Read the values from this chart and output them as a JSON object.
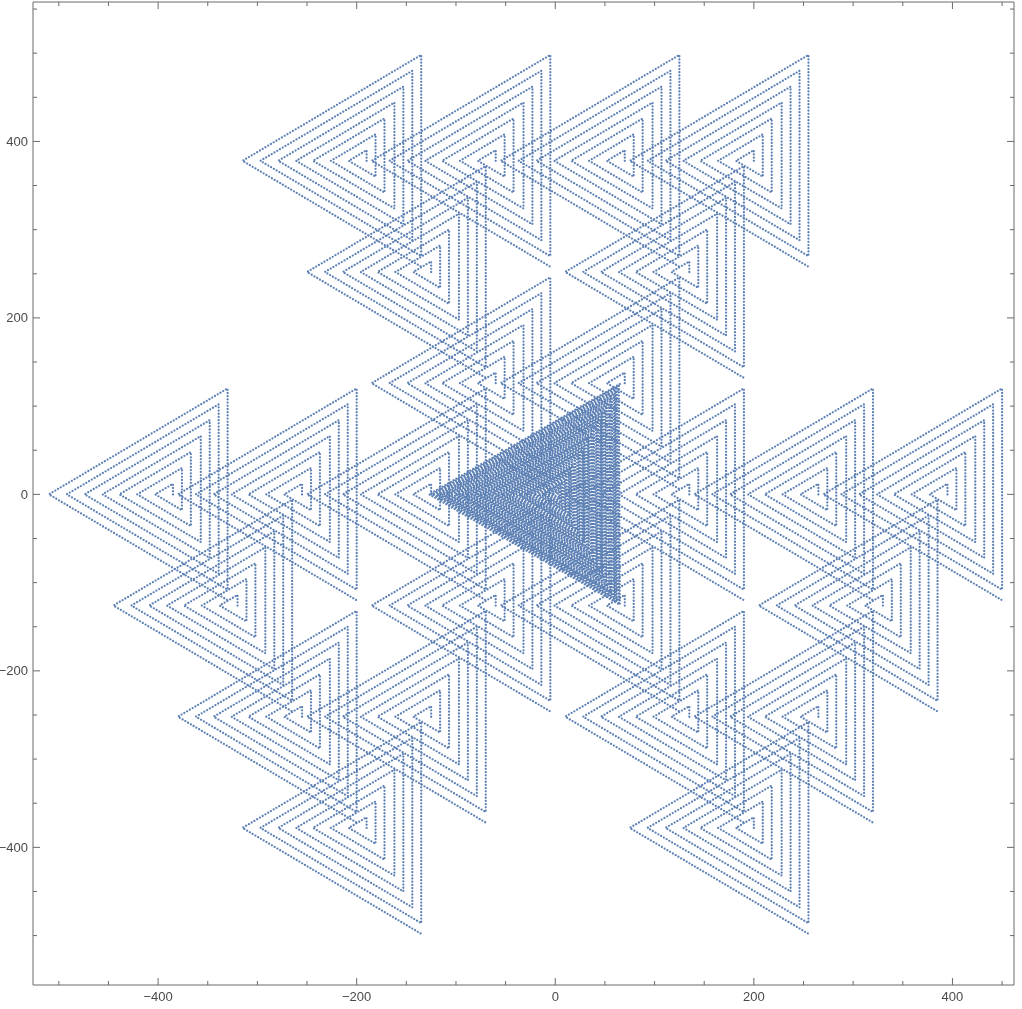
{
  "chart_data": {
    "type": "line",
    "line_style": "dotted",
    "xlim": [
      -526,
      462
    ],
    "ylim": [
      -556,
      558
    ],
    "xticks": [
      {
        "value": -500,
        "label": null
      },
      {
        "value": -450,
        "label": null
      },
      -400,
      {
        "value": -350,
        "label": null
      },
      {
        "value": -300,
        "label": null
      },
      {
        "value": -250,
        "label": null
      },
      -200,
      {
        "value": -150,
        "label": null
      },
      {
        "value": -100,
        "label": null
      },
      {
        "value": -50,
        "label": null
      },
      0,
      {
        "value": 50,
        "label": null
      },
      {
        "value": 100,
        "label": null
      },
      {
        "value": 150,
        "label": null
      },
      200,
      {
        "value": 250,
        "label": null
      },
      {
        "value": 300,
        "label": null
      },
      {
        "value": 350,
        "label": null
      },
      400,
      {
        "value": 450,
        "label": null
      }
    ],
    "yticks": [
      {
        "value": -500,
        "label": null
      },
      {
        "value": -450,
        "label": null
      },
      -400,
      {
        "value": -350,
        "label": null
      },
      {
        "value": -300,
        "label": null
      },
      {
        "value": -250,
        "label": null
      },
      -200,
      {
        "value": -150,
        "label": null
      },
      {
        "value": -100,
        "label": null
      },
      {
        "value": -50,
        "label": null
      },
      0,
      {
        "value": 50,
        "label": null
      },
      {
        "value": 100,
        "label": null
      },
      {
        "value": 150,
        "label": null
      },
      200,
      {
        "value": 250,
        "label": null
      },
      {
        "value": 300,
        "label": null
      },
      {
        "value": 350,
        "label": null
      },
      400,
      {
        "value": 450,
        "label": null
      },
      {
        "value": 500,
        "label": null
      },
      {
        "value": 550,
        "label": null
      }
    ],
    "series": [
      {
        "color": "#5e81b5",
        "x": [
          -190,
          -190,
          -208,
          -181,
          -181,
          -226,
          -172,
          -172,
          -244,
          -162,
          -162,
          -261,
          -153,
          -153,
          -279,
          -144,
          -144,
          -297,
          -135,
          -135,
          -315,
          -135
        ],
        "values": [
          378,
          390,
          378,
          360,
          408,
          378,
          342,
          426,
          378,
          324,
          444,
          378,
          306,
          462,
          378,
          288,
          480,
          378,
          270,
          498,
          378,
          258
        ]
      },
      {
        "color": "#5e81b5",
        "x": [
          -60,
          -60,
          -78,
          -51,
          -51,
          -96,
          -42,
          -42,
          -114,
          -32,
          -32,
          -131,
          -23,
          -23,
          -149,
          -14,
          -14,
          -167,
          -5,
          -5,
          -185,
          -5
        ],
        "values": [
          378,
          390,
          378,
          360,
          408,
          378,
          342,
          426,
          378,
          324,
          444,
          378,
          306,
          462,
          378,
          288,
          480,
          378,
          270,
          498,
          378,
          258
        ]
      },
      {
        "color": "#5e81b5",
        "x": [
          70,
          70,
          52,
          79,
          79,
          34,
          88,
          88,
          16,
          98,
          98,
          -1,
          107,
          107,
          -19,
          116,
          116,
          -37,
          125,
          125,
          -55,
          125
        ],
        "values": [
          378,
          390,
          378,
          360,
          408,
          378,
          342,
          426,
          378,
          324,
          444,
          378,
          306,
          462,
          378,
          288,
          480,
          378,
          270,
          498,
          378,
          258
        ]
      },
      {
        "color": "#5e81b5",
        "x": [
          200,
          200,
          182,
          209,
          209,
          164,
          218,
          218,
          146,
          228,
          228,
          129,
          237,
          237,
          111,
          246,
          246,
          93,
          255,
          255,
          75,
          255
        ],
        "values": [
          378,
          390,
          378,
          360,
          408,
          378,
          342,
          426,
          378,
          324,
          444,
          378,
          306,
          462,
          378,
          288,
          480,
          378,
          270,
          498,
          378,
          258
        ]
      },
      {
        "color": "#5e81b5",
        "x": [
          -125,
          -125,
          -143,
          -116,
          -116,
          -161,
          -107,
          -107,
          -179,
          -97,
          -97,
          -196,
          -88,
          -88,
          -214,
          -79,
          -79,
          -232,
          -70,
          -70,
          -250,
          -70
        ],
        "values": [
          252,
          264,
          252,
          234,
          282,
          252,
          216,
          300,
          252,
          198,
          318,
          252,
          180,
          336,
          252,
          162,
          354,
          252,
          144,
          372,
          252,
          132
        ]
      },
      {
        "color": "#5e81b5",
        "x": [
          135,
          135,
          117,
          144,
          144,
          99,
          153,
          153,
          81,
          163,
          163,
          64,
          172,
          172,
          46,
          181,
          181,
          28,
          190,
          190,
          10,
          190
        ],
        "values": [
          252,
          264,
          252,
          234,
          282,
          252,
          216,
          300,
          252,
          198,
          318,
          252,
          180,
          336,
          252,
          162,
          354,
          252,
          144,
          372,
          252,
          132
        ]
      },
      {
        "color": "#5e81b5",
        "x": [
          -60,
          -60,
          -78,
          -51,
          -51,
          -96,
          -42,
          -42,
          -114,
          -32,
          -32,
          -131,
          -23,
          -23,
          -149,
          -14,
          -14,
          -167,
          -5,
          -5,
          -185,
          -5
        ],
        "values": [
          126,
          138,
          126,
          108,
          156,
          126,
          90,
          174,
          126,
          72,
          192,
          126,
          54,
          210,
          126,
          36,
          228,
          126,
          18,
          246,
          126,
          6
        ]
      },
      {
        "color": "#5e81b5",
        "x": [
          70,
          70,
          52,
          79,
          79,
          34,
          88,
          88,
          16,
          98,
          98,
          -1,
          107,
          107,
          -19,
          116,
          116,
          -37,
          125,
          125,
          -55,
          125
        ],
        "values": [
          126,
          138,
          126,
          108,
          156,
          126,
          90,
          174,
          126,
          72,
          192,
          126,
          54,
          210,
          126,
          36,
          228,
          126,
          18,
          246,
          126,
          6
        ]
      },
      {
        "color": "#5e81b5",
        "x": [
          -385,
          -385,
          -403,
          -376,
          -376,
          -421,
          -367,
          -367,
          -439,
          -357,
          -357,
          -456,
          -348,
          -348,
          -474,
          -339,
          -339,
          -492,
          -330,
          -330,
          -510,
          -330
        ],
        "values": [
          0,
          12,
          0,
          -18,
          30,
          0,
          -36,
          48,
          0,
          -54,
          66,
          0,
          -72,
          84,
          0,
          -90,
          102,
          0,
          -108,
          120,
          0,
          -120
        ]
      },
      {
        "color": "#5e81b5",
        "x": [
          -255,
          -255,
          -273,
          -246,
          -246,
          -291,
          -237,
          -237,
          -309,
          -227,
          -227,
          -326,
          -218,
          -218,
          -344,
          -209,
          -209,
          -362,
          -200,
          -200,
          -380,
          -200
        ],
        "values": [
          0,
          12,
          0,
          -18,
          30,
          0,
          -36,
          48,
          0,
          -54,
          66,
          0,
          -72,
          84,
          0,
          -90,
          102,
          0,
          -108,
          120,
          0,
          -120
        ]
      },
      {
        "color": "#5e81b5",
        "x": [
          -125,
          -125,
          -143,
          -116,
          -116,
          -161,
          -107,
          -107,
          -179,
          -97,
          -97,
          -196,
          -88,
          -88,
          -214,
          -79,
          -79,
          -232,
          -70,
          -70,
          -250,
          -70
        ],
        "values": [
          0,
          12,
          0,
          -18,
          30,
          0,
          -36,
          48,
          0,
          -54,
          66,
          0,
          -72,
          84,
          0,
          -90,
          102,
          0,
          -108,
          120,
          0,
          -120
        ]
      },
      {
        "color": "#5e81b5",
        "x": [
          135,
          135,
          117,
          144,
          144,
          99,
          153,
          153,
          81,
          163,
          163,
          64,
          172,
          172,
          46,
          181,
          181,
          28,
          190,
          190,
          10,
          190
        ],
        "values": [
          0,
          12,
          0,
          -18,
          30,
          0,
          -36,
          48,
          0,
          -54,
          66,
          0,
          -72,
          84,
          0,
          -90,
          102,
          0,
          -108,
          120,
          0,
          -120
        ]
      },
      {
        "color": "#5e81b5",
        "x": [
          265,
          265,
          247,
          274,
          274,
          229,
          283,
          283,
          211,
          293,
          293,
          194,
          302,
          302,
          176,
          311,
          311,
          158,
          320,
          320,
          140,
          320
        ],
        "values": [
          0,
          12,
          0,
          -18,
          30,
          0,
          -36,
          48,
          0,
          -54,
          66,
          0,
          -72,
          84,
          0,
          -90,
          102,
          0,
          -108,
          120,
          0,
          -120
        ]
      },
      {
        "color": "#5e81b5",
        "x": [
          395,
          395,
          377,
          404,
          404,
          359,
          413,
          413,
          341,
          423,
          423,
          324,
          432,
          432,
          306,
          441,
          441,
          288,
          450,
          450,
          270,
          450
        ],
        "values": [
          0,
          12,
          0,
          -18,
          30,
          0,
          -36,
          48,
          0,
          -54,
          66,
          0,
          -72,
          84,
          0,
          -90,
          102,
          0,
          -108,
          120,
          0,
          -120
        ]
      },
      {
        "color": "#5e81b5",
        "x": [
          -320,
          -320,
          -338,
          -311,
          -311,
          -356,
          -302,
          -302,
          -374,
          -292,
          -292,
          -391,
          -283,
          -283,
          -409,
          -274,
          -274,
          -427,
          -265,
          -265,
          -445,
          -265
        ],
        "values": [
          -126,
          -114,
          -126,
          -144,
          -96,
          -126,
          -162,
          -78,
          -126,
          -180,
          -60,
          -126,
          -198,
          -42,
          -126,
          -216,
          -24,
          -126,
          -234,
          -6,
          -126,
          -246
        ]
      },
      {
        "color": "#5e81b5",
        "x": [
          -60,
          -60,
          -78,
          -51,
          -51,
          -96,
          -42,
          -42,
          -114,
          -32,
          -32,
          -131,
          -23,
          -23,
          -149,
          -14,
          -14,
          -167,
          -5,
          -5,
          -185,
          -5
        ],
        "values": [
          -126,
          -114,
          -126,
          -144,
          -96,
          -126,
          -162,
          -78,
          -126,
          -180,
          -60,
          -126,
          -198,
          -42,
          -126,
          -216,
          -24,
          -126,
          -234,
          -6,
          -126,
          -246
        ]
      },
      {
        "color": "#5e81b5",
        "x": [
          70,
          70,
          52,
          79,
          79,
          34,
          88,
          88,
          16,
          98,
          98,
          -1,
          107,
          107,
          -19,
          116,
          116,
          -37,
          125,
          125,
          -55,
          125
        ],
        "values": [
          -126,
          -114,
          -126,
          -144,
          -96,
          -126,
          -162,
          -78,
          -126,
          -180,
          -60,
          -126,
          -198,
          -42,
          -126,
          -216,
          -24,
          -126,
          -234,
          -6,
          -126,
          -246
        ]
      },
      {
        "color": "#5e81b5",
        "x": [
          330,
          330,
          312,
          339,
          339,
          294,
          348,
          348,
          276,
          358,
          358,
          259,
          367,
          367,
          241,
          376,
          376,
          223,
          385,
          385,
          205,
          385
        ],
        "values": [
          -126,
          -114,
          -126,
          -144,
          -96,
          -126,
          -162,
          -78,
          -126,
          -180,
          -60,
          -126,
          -198,
          -42,
          -126,
          -216,
          -24,
          -126,
          -234,
          -6,
          -126,
          -246
        ]
      },
      {
        "color": "#5e81b5",
        "x": [
          -255,
          -255,
          -273,
          -246,
          -246,
          -291,
          -237,
          -237,
          -309,
          -227,
          -227,
          -326,
          -218,
          -218,
          -344,
          -209,
          -209,
          -362,
          -200,
          -200,
          -380,
          -200
        ],
        "values": [
          -252,
          -240,
          -252,
          -270,
          -222,
          -252,
          -288,
          -204,
          -252,
          -306,
          -186,
          -252,
          -324,
          -168,
          -252,
          -342,
          -150,
          -252,
          -360,
          -132,
          -252,
          -372
        ]
      },
      {
        "color": "#5e81b5",
        "x": [
          -125,
          -125,
          -143,
          -116,
          -116,
          -161,
          -107,
          -107,
          -179,
          -97,
          -97,
          -196,
          -88,
          -88,
          -214,
          -79,
          -79,
          -232,
          -70,
          -70,
          -250,
          -70
        ],
        "values": [
          -252,
          -240,
          -252,
          -270,
          -222,
          -252,
          -288,
          -204,
          -252,
          -306,
          -186,
          -252,
          -324,
          -168,
          -252,
          -342,
          -150,
          -252,
          -360,
          -132,
          -252,
          -372
        ]
      },
      {
        "color": "#5e81b5",
        "x": [
          135,
          135,
          117,
          144,
          144,
          99,
          153,
          153,
          81,
          163,
          163,
          64,
          172,
          172,
          46,
          181,
          181,
          28,
          190,
          190,
          10,
          190
        ],
        "values": [
          -252,
          -240,
          -252,
          -270,
          -222,
          -252,
          -288,
          -204,
          -252,
          -306,
          -186,
          -252,
          -324,
          -168,
          -252,
          -342,
          -150,
          -252,
          -360,
          -132,
          -252,
          -372
        ]
      },
      {
        "color": "#5e81b5",
        "x": [
          265,
          265,
          247,
          274,
          274,
          229,
          283,
          283,
          211,
          293,
          293,
          194,
          302,
          302,
          176,
          311,
          311,
          158,
          320,
          320,
          140,
          320
        ],
        "values": [
          -252,
          -240,
          -252,
          -270,
          -222,
          -252,
          -288,
          -204,
          -252,
          -306,
          -186,
          -252,
          -324,
          -168,
          -252,
          -342,
          -150,
          -252,
          -360,
          -132,
          -252,
          -372
        ]
      },
      {
        "color": "#5e81b5",
        "x": [
          -190,
          -190,
          -208,
          -181,
          -181,
          -226,
          -172,
          -172,
          -244,
          -162,
          -162,
          -261,
          -153,
          -153,
          -279,
          -144,
          -144,
          -297,
          -135,
          -135,
          -315,
          -135
        ],
        "values": [
          -378,
          -366,
          -378,
          -396,
          -348,
          -378,
          -414,
          -330,
          -378,
          -432,
          -312,
          -378,
          -450,
          -294,
          -378,
          -468,
          -276,
          -378,
          -486,
          -258,
          -378,
          -498
        ]
      },
      {
        "color": "#5e81b5",
        "x": [
          200,
          200,
          182,
          209,
          209,
          164,
          218,
          218,
          146,
          228,
          228,
          129,
          237,
          237,
          111,
          246,
          246,
          93,
          255,
          255,
          75,
          255
        ],
        "values": [
          -378,
          -366,
          -378,
          -396,
          -348,
          -378,
          -414,
          -330,
          -378,
          -432,
          -312,
          -378,
          -450,
          -294,
          -378,
          -468,
          -276,
          -378,
          -486,
          -258,
          -378,
          -498
        ]
      },
      {
        "color": "#5e81b5",
        "x": [
          65,
          -127,
          65,
          64,
          -124,
          64,
          62,
          -122,
          62,
          61,
          -119,
          61,
          60,
          -117,
          60,
          59,
          -114,
          59,
          57,
          -112,
          57,
          56,
          -109,
          56,
          55,
          -107,
          55,
          54,
          -104,
          54,
          52,
          -101,
          52,
          51,
          -99,
          51,
          50,
          -96,
          50,
          48,
          -94,
          48,
          47,
          -91,
          47,
          46,
          -89,
          46,
          45,
          -86,
          45,
          43,
          -84,
          43,
          42,
          -81,
          42,
          41,
          -78,
          41,
          39,
          -76,
          39,
          38,
          -73,
          38,
          37,
          -71,
          37,
          36,
          -68,
          36,
          34,
          -66,
          34,
          33,
          -63,
          33,
          32,
          -60,
          32,
          30,
          -58,
          30,
          29,
          -55,
          29,
          28,
          -53,
          28,
          27,
          -50,
          27,
          25,
          -48,
          25,
          24,
          -45,
          24,
          23,
          -43,
          23,
          22,
          -40,
          22,
          20,
          -37,
          20,
          19,
          -35,
          19,
          18,
          -32,
          18,
          16,
          -30,
          16,
          15,
          -27,
          15,
          14,
          -25,
          14,
          13,
          -22,
          13,
          11,
          -20,
          11,
          10,
          -17,
          10,
          9,
          -14,
          9,
          7,
          -12,
          7,
          6,
          -9,
          6,
          5,
          -7,
          5,
          4,
          -4,
          4,
          2,
          -2,
          2
        ],
        "values": [
          125,
          0,
          -125,
          123,
          0,
          -123,
          120,
          0,
          -120,
          118,
          0,
          -118,
          115,
          0,
          -115,
          113,
          0,
          -113,
          110,
          0,
          -110,
          108,
          0,
          -108,
          105,
          0,
          -105,
          103,
          0,
          -103,
          100,
          0,
          -100,
          98,
          0,
          -98,
          95,
          0,
          -95,
          93,
          0,
          -93,
          90,
          0,
          -90,
          88,
          0,
          -88,
          85,
          0,
          -85,
          83,
          0,
          -83,
          80,
          0,
          -80,
          78,
          0,
          -78,
          75,
          0,
          -75,
          73,
          0,
          -73,
          70,
          0,
          -70,
          68,
          0,
          -68,
          65,
          0,
          -65,
          63,
          0,
          -63,
          60,
          0,
          -60,
          58,
          0,
          -58,
          55,
          0,
          -55,
          53,
          0,
          -53,
          50,
          0,
          -50,
          48,
          0,
          -48,
          45,
          0,
          -45,
          43,
          0,
          -43,
          40,
          0,
          -40,
          38,
          0,
          -38,
          35,
          0,
          -35,
          33,
          0,
          -33,
          30,
          0,
          -30,
          28,
          0,
          -28,
          25,
          0,
          -25,
          23,
          0,
          -23,
          20,
          0,
          -20,
          18,
          0,
          -18,
          15,
          0,
          -15,
          13,
          0,
          -13,
          10,
          0,
          -10,
          8,
          0,
          -8,
          5,
          0,
          -5,
          3,
          0,
          -3
        ]
      }
    ]
  }
}
